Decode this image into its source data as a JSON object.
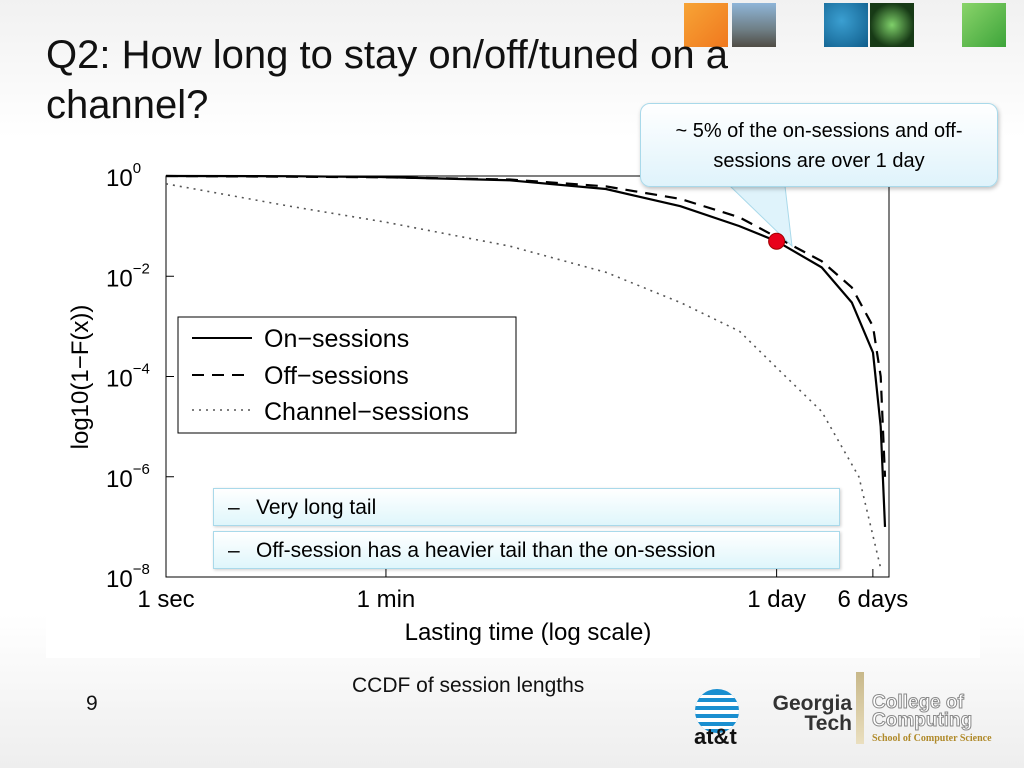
{
  "slide": {
    "title": "Q2: How long to stay on/off/tuned on a channel?",
    "callout": "~ 5% of the on-sessions and off-sessions are over 1 day",
    "bullets": [
      {
        "dash": "–",
        "text": "Very long tail"
      },
      {
        "dash": "–",
        "text": "Off-session has a heavier tail than the on-session"
      }
    ],
    "caption": "CCDF of session lengths",
    "page_number": "9",
    "logos": {
      "att": "at&t",
      "gt_line1": "Georgia",
      "gt_line2": "Tech",
      "coc_line1": "College of",
      "coc_line2": "Computing",
      "coc_sub": "School of Computer Science"
    },
    "colors": {
      "accent_cyan": "#dff3fb",
      "marker": "#e8001a"
    }
  },
  "chart_data": {
    "type": "line",
    "xlabel": "Lasting time (log scale)",
    "ylabel": "log10(1−F(x))",
    "x_scale": "log",
    "y_scale": "log",
    "x_ticks": [
      {
        "label": "1 sec",
        "seconds": 1
      },
      {
        "label": "1 min",
        "seconds": 60
      },
      {
        "label": "1 day",
        "seconds": 86400
      },
      {
        "label": "6 days",
        "seconds": 518400
      }
    ],
    "y_ticks": [
      {
        "base": "10",
        "exp": "0",
        "value": 1
      },
      {
        "base": "10",
        "exp": "−2",
        "value": 0.01
      },
      {
        "base": "10",
        "exp": "−4",
        "value": 0.0001
      },
      {
        "base": "10",
        "exp": "−6",
        "value": 1e-06
      },
      {
        "base": "10",
        "exp": "−8",
        "value": 1e-08
      }
    ],
    "xlim_seconds": [
      1,
      700000
    ],
    "ylim": [
      1e-08,
      1
    ],
    "legend_position": "center-left",
    "series": [
      {
        "name": "On−sessions",
        "style": "solid",
        "x": [
          1,
          10,
          60,
          600,
          3600,
          14400,
          43200,
          86400,
          200000,
          350000,
          520000,
          600000,
          650000
        ],
        "y": [
          1,
          0.99,
          0.95,
          0.82,
          0.55,
          0.25,
          0.1,
          0.05,
          0.015,
          0.003,
          0.0003,
          1e-05,
          1e-07
        ]
      },
      {
        "name": "Off−sessions",
        "style": "dashed",
        "x": [
          1,
          10,
          60,
          600,
          3600,
          14400,
          43200,
          86400,
          200000,
          350000,
          520000,
          600000,
          650000
        ],
        "y": [
          1,
          0.97,
          0.94,
          0.85,
          0.62,
          0.35,
          0.15,
          0.06,
          0.02,
          0.006,
          0.001,
          0.0001,
          1e-06
        ]
      },
      {
        "name": "Channel−sessions",
        "style": "dotted",
        "x": [
          1,
          10,
          60,
          600,
          3600,
          14400,
          43200,
          86400,
          200000,
          400000,
          600000
        ],
        "y": [
          0.7,
          0.25,
          0.12,
          0.04,
          0.012,
          0.003,
          0.0008,
          0.00015,
          2e-05,
          1e-06,
          1.5e-08
        ]
      }
    ],
    "marker": {
      "x_seconds": 86400,
      "y": 0.05,
      "color": "#e8001a"
    }
  }
}
